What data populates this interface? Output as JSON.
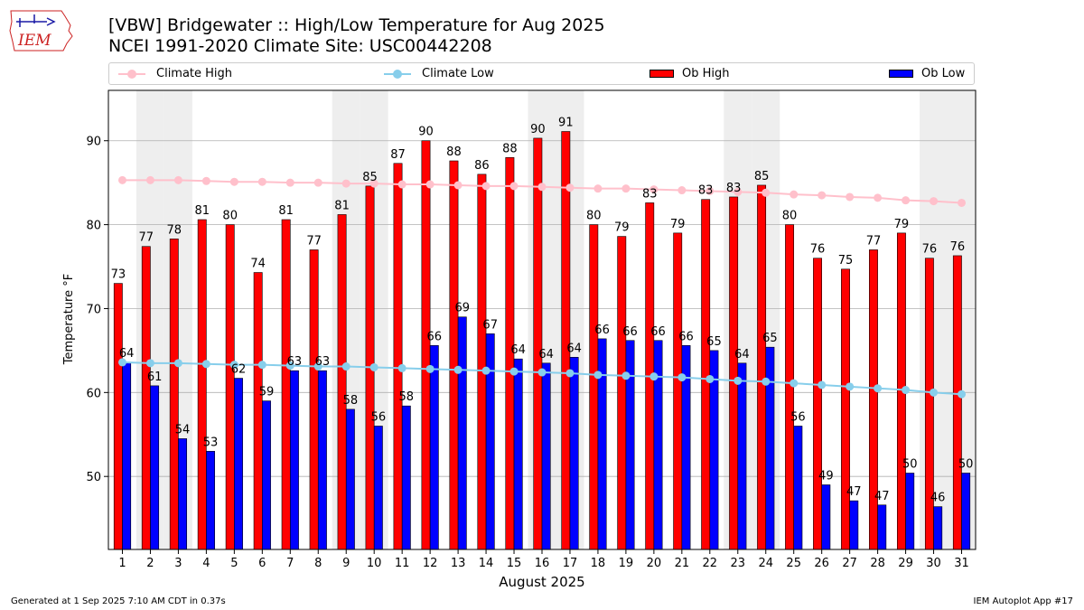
{
  "logo": {
    "text": "IEM",
    "accent": "#cc2222"
  },
  "header": {
    "title_line1": "[VBW] Bridgewater :: High/Low Temperature for Aug 2025",
    "title_line2": "NCEI 1991-2020 Climate Site: USC00442208"
  },
  "legend": {
    "items": [
      {
        "label": "Climate High",
        "kind": "line",
        "color": "#ffc0cb"
      },
      {
        "label": "Climate Low",
        "kind": "line",
        "color": "#87ceeb"
      },
      {
        "label": "Ob High",
        "kind": "bar",
        "color": "#ff0000"
      },
      {
        "label": "Ob Low",
        "kind": "bar",
        "color": "#0000ff"
      }
    ]
  },
  "footer": {
    "generated": "Generated at 1 Sep 2025 7:10 AM CDT in 0.37s",
    "app": "IEM Autoplot App #17"
  },
  "chart_data": {
    "type": "bar",
    "xlabel": "August 2025",
    "ylabel": "Temperature °F",
    "ylim": [
      41.3,
      96
    ],
    "yticks": [
      50,
      60,
      70,
      80,
      90
    ],
    "grid": "horizontal",
    "legend_position": "top",
    "weekend_shading_days": [
      2,
      3,
      9,
      10,
      16,
      17,
      23,
      24,
      30,
      31
    ],
    "categories": [
      "1",
      "2",
      "3",
      "4",
      "5",
      "6",
      "7",
      "8",
      "9",
      "10",
      "11",
      "12",
      "13",
      "14",
      "15",
      "16",
      "17",
      "18",
      "19",
      "20",
      "21",
      "22",
      "23",
      "24",
      "25",
      "26",
      "27",
      "28",
      "29",
      "30",
      "31"
    ],
    "series": [
      {
        "name": "Ob High",
        "type": "bar",
        "color": "#ff0000",
        "values": [
          73,
          77.4,
          78.3,
          80.6,
          80,
          74.3,
          80.6,
          77,
          81.2,
          84.6,
          87.3,
          90,
          87.6,
          86,
          88,
          90.3,
          91.1,
          80,
          78.6,
          82.6,
          79,
          83,
          83.3,
          84.7,
          80,
          76,
          74.7,
          77,
          79,
          76,
          76.3
        ],
        "labels": [
          73,
          77,
          78,
          81,
          80,
          74,
          81,
          77,
          81,
          85,
          87,
          90,
          88,
          86,
          88,
          90,
          91,
          80,
          79,
          83,
          79,
          83,
          83,
          85,
          80,
          76,
          75,
          77,
          79,
          76,
          76
        ]
      },
      {
        "name": "Ob Low",
        "type": "bar",
        "color": "#0000ff",
        "values": [
          63.6,
          60.8,
          54.5,
          53,
          61.7,
          59,
          62.6,
          62.6,
          58,
          56,
          58.4,
          65.6,
          69,
          67,
          64,
          63.5,
          64.2,
          66.4,
          66.2,
          66.2,
          65.6,
          65,
          63.5,
          65.4,
          56,
          49,
          47.1,
          46.6,
          50.4,
          46.4,
          50.4
        ],
        "labels": [
          64,
          61,
          54,
          53,
          62,
          59,
          63,
          63,
          58,
          56,
          58,
          66,
          69,
          67,
          64,
          64,
          64,
          66,
          66,
          66,
          66,
          65,
          64,
          65,
          56,
          49,
          47,
          47,
          50,
          46,
          50
        ]
      },
      {
        "name": "Climate High",
        "type": "line",
        "color": "#ffc0cb",
        "values": [
          85.3,
          85.3,
          85.3,
          85.2,
          85.1,
          85.1,
          85.0,
          85.0,
          84.9,
          84.9,
          84.8,
          84.8,
          84.7,
          84.6,
          84.6,
          84.5,
          84.4,
          84.3,
          84.3,
          84.2,
          84.1,
          84.0,
          83.9,
          83.8,
          83.6,
          83.5,
          83.3,
          83.2,
          82.9,
          82.8,
          82.6
        ]
      },
      {
        "name": "Climate Low",
        "type": "line",
        "color": "#87ceeb",
        "values": [
          63.6,
          63.5,
          63.5,
          63.4,
          63.3,
          63.3,
          63.2,
          63.1,
          63.1,
          63.0,
          62.9,
          62.8,
          62.7,
          62.6,
          62.5,
          62.4,
          62.3,
          62.1,
          62.0,
          61.9,
          61.8,
          61.6,
          61.4,
          61.3,
          61.1,
          60.9,
          60.7,
          60.5,
          60.3,
          60.0,
          59.8
        ]
      }
    ]
  }
}
